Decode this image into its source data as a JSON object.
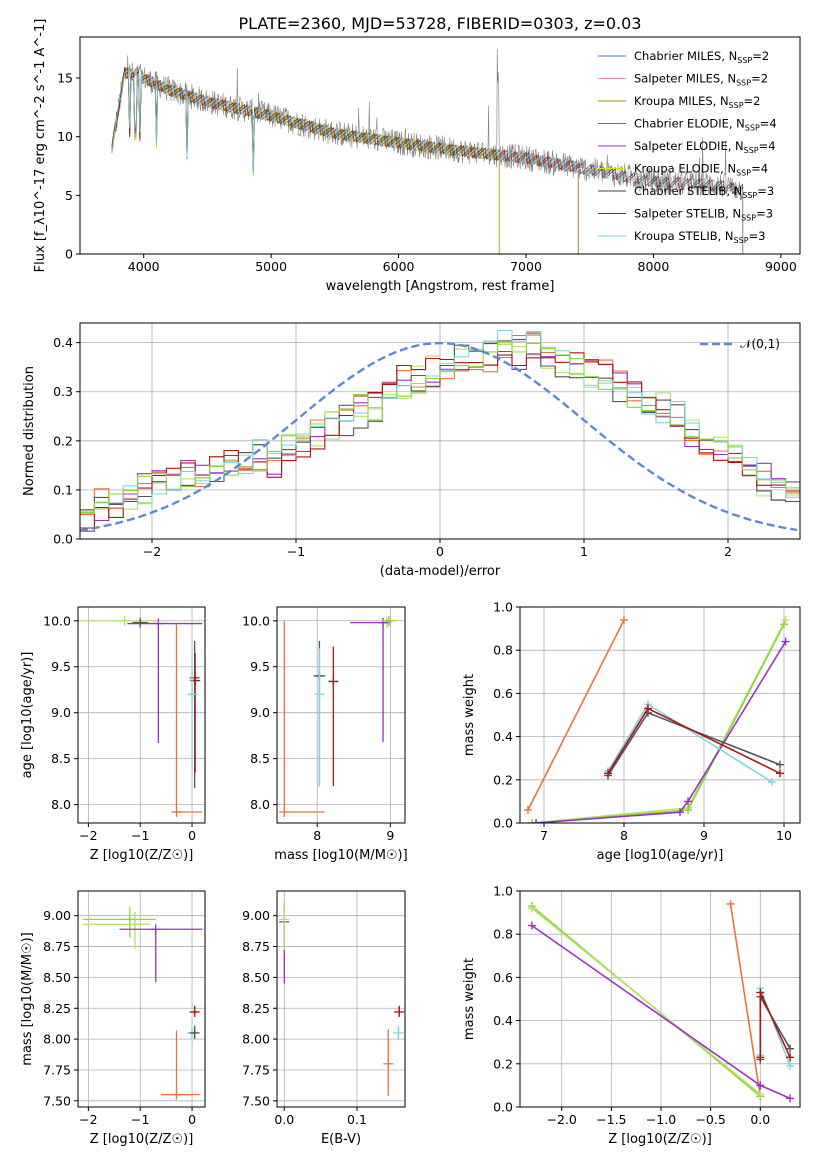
{
  "figure": {
    "title": "PLATE=2360, MJD=53728, FIBERID=0303, z=0.03"
  },
  "colors": {
    "chabrier_miles": "#4c72d0",
    "salpeter_miles": "#f08ca0",
    "kroupa_miles": "#b8860b",
    "chabrier_elodie": "#2ca02c",
    "salpeter_elodie": "#9b30c8",
    "kroupa_elodie": "#d4e800",
    "chabrier_stelib": "#404040",
    "salpeter_stelib": "#b01515",
    "kroupa_stelib": "#6fd6e0",
    "data": "#808080",
    "gaussian": "#5b8bd6",
    "orange": "#e8743b",
    "lightgreen": "#b5e36b",
    "purple": "#9b30c8",
    "gray": "#555555",
    "red": "#b01515",
    "cyan": "#7fd6e0",
    "green": "#8fd43b"
  },
  "chart_data": [
    {
      "id": "spectrum",
      "type": "line",
      "xlabel": "wavelength [Angstrom, rest frame]",
      "ylabel": "Flux [f_λ10^-17 erg cm^-2 s^-1 A^-1]",
      "xlim": [
        3500,
        9150
      ],
      "ylim": [
        0,
        18.5
      ],
      "xticks": [
        "4000",
        "5000",
        "6000",
        "7000",
        "8000",
        "9000"
      ],
      "yticks": [
        "0",
        "5",
        "10",
        "15"
      ],
      "grid": false,
      "legend_position": "top-right",
      "legend": [
        {
          "name": "Chabrier MILES, N",
          "sub": "SSP",
          "suffix": "=2"
        },
        {
          "name": "Salpeter MILES, N",
          "sub": "SSP",
          "suffix": "=2"
        },
        {
          "name": "Kroupa MILES, N",
          "sub": "SSP",
          "suffix": "=2"
        },
        {
          "name": "Chabrier ELODIE, N",
          "sub": "SSP",
          "suffix": "=4"
        },
        {
          "name": "Salpeter ELODIE, N",
          "sub": "SSP",
          "suffix": "=4"
        },
        {
          "name": "Kroupa ELODIE, N",
          "sub": "SSP",
          "suffix": "=4"
        },
        {
          "name": "Chabrier STELIB, N",
          "sub": "SSP",
          "suffix": "=3"
        },
        {
          "name": "Salpeter STELIB, N",
          "sub": "SSP",
          "suffix": "=3"
        },
        {
          "name": "Kroupa STELIB, N",
          "sub": "SSP",
          "suffix": "=3"
        }
      ],
      "continuum": {
        "x": [
          3750,
          3850,
          4000,
          4200,
          4500,
          5000,
          5500,
          6000,
          6500,
          7000,
          7500,
          8000,
          8500,
          8700
        ],
        "y": [
          9.0,
          15.5,
          15.0,
          14.0,
          13.0,
          11.8,
          10.3,
          9.5,
          8.8,
          8.2,
          7.2,
          6.2,
          5.9,
          5.5
        ]
      },
      "model_ranges": {
        "miles": [
          3750,
          7410
        ],
        "elodie": [
          3750,
          6790
        ],
        "stelib": [
          3750,
          8700
        ]
      }
    },
    {
      "id": "residuals",
      "type": "step",
      "xlabel": "(data-model)/error",
      "ylabel": "Normed distribution",
      "xlim": [
        -2.5,
        2.5
      ],
      "ylim": [
        0,
        0.44
      ],
      "xticks": [
        "−2",
        "−1",
        "0",
        "1",
        "2"
      ],
      "yticks": [
        "0.0",
        "0.1",
        "0.2",
        "0.3",
        "0.4"
      ],
      "grid": true,
      "legend_position": "top-right",
      "gaussian_label": "𝒩(0,1)",
      "bin_width": 0.1,
      "bin_start": -2.5,
      "base_hist": [
        0.05,
        0.07,
        0.06,
        0.08,
        0.1,
        0.12,
        0.11,
        0.14,
        0.13,
        0.15,
        0.16,
        0.15,
        0.17,
        0.16,
        0.18,
        0.19,
        0.21,
        0.23,
        0.24,
        0.26,
        0.27,
        0.3,
        0.32,
        0.33,
        0.34,
        0.35,
        0.36,
        0.38,
        0.37,
        0.39,
        0.38,
        0.39,
        0.37,
        0.36,
        0.35,
        0.34,
        0.33,
        0.31,
        0.3,
        0.28,
        0.27,
        0.25,
        0.22,
        0.2,
        0.19,
        0.16,
        0.14,
        0.12,
        0.1,
        0.09,
        0.08,
        0.07,
        0.06,
        0.06,
        0.05,
        0.04,
        0.04,
        0.03,
        0.03,
        0.02,
        0.03,
        0.02,
        0.03,
        0.03,
        0.03
      ]
    },
    {
      "id": "age-vs-Z",
      "type": "errorbar",
      "xlabel": "Z [log10(Z/Z☉)]",
      "ylabel": "age  [log10(age/yr)]",
      "xlim": [
        -2.2,
        0.25
      ],
      "ylim": [
        7.8,
        10.15
      ],
      "xticks": [
        "−2",
        "−1",
        "0"
      ],
      "yticks": [
        "8.0",
        "8.5",
        "9.0",
        "9.5",
        "10.0"
      ],
      "points": [
        {
          "x": -1.3,
          "y": 10.0,
          "xe": [
            0.9,
            0.6
          ],
          "ye": [
            0.02,
            0.02
          ],
          "c": "lightgreen"
        },
        {
          "x": -1.0,
          "y": 9.98,
          "xe": [
            0.15,
            0.15
          ],
          "ye": [
            0.03,
            0.03
          ],
          "c": "gray"
        },
        {
          "x": -0.65,
          "y": 9.97,
          "xe": [
            0.6,
            0.85
          ],
          "ye": [
            1.3,
            0.0
          ],
          "c": "purple"
        },
        {
          "x": -0.3,
          "y": 7.92,
          "xe": [
            0.05,
            0.5
          ],
          "ye": [
            0.0,
            2.05
          ],
          "c": "orange"
        },
        {
          "x": 0.05,
          "y": 9.38,
          "xe": [
            0.05,
            0.05
          ],
          "ye": [
            1.2,
            0.4
          ],
          "c": "gray"
        },
        {
          "x": 0.06,
          "y": 9.35,
          "xe": [
            0.05,
            0.05
          ],
          "ye": [
            1.0,
            0.3
          ],
          "c": "red"
        },
        {
          "x": 0.0,
          "y": 9.2,
          "xe": [
            0.05,
            0.05
          ],
          "ye": [
            0.8,
            0.4
          ],
          "c": "cyan"
        }
      ]
    },
    {
      "id": "age-vs-mass",
      "type": "errorbar",
      "xlabel": "mass [log10(M/M☉)]",
      "ylabel": "",
      "xlim": [
        7.45,
        9.2
      ],
      "ylim": [
        7.8,
        10.15
      ],
      "xticks": [
        "8",
        "9"
      ],
      "yticks": [
        "8.0",
        "8.5",
        "9.0",
        "9.5",
        "10.0"
      ],
      "points": [
        {
          "x": 7.55,
          "y": 7.92,
          "xe": [
            0.0,
            0.55
          ],
          "ye": [
            0.0,
            2.08
          ],
          "c": "orange"
        },
        {
          "x": 7.65,
          "y": 7.92,
          "xe": [
            0.0,
            0.0
          ],
          "ye": [
            0.0,
            2.05
          ],
          "c": "salpeter"
        },
        {
          "x": 8.03,
          "y": 9.4,
          "xe": [
            0.08,
            0.08
          ],
          "ye": [
            1.2,
            0.38
          ],
          "c": "gray"
        },
        {
          "x": 8.03,
          "y": 9.2,
          "xe": [
            0.05,
            0.05
          ],
          "ye": [
            1.0,
            0.5
          ],
          "c": "cyan"
        },
        {
          "x": 8.22,
          "y": 9.34,
          "xe": [
            0.06,
            0.06
          ],
          "ye": [
            1.14,
            0.38
          ],
          "c": "red"
        },
        {
          "x": 8.95,
          "y": 9.98,
          "xe": [
            0.05,
            0.05
          ],
          "ye": [
            0.05,
            0.05
          ],
          "c": "lightgreen"
        },
        {
          "x": 8.9,
          "y": 9.98,
          "xe": [
            0.45,
            0.1
          ],
          "ye": [
            1.3,
            0.0
          ],
          "c": "purple"
        },
        {
          "x": 8.98,
          "y": 10.0,
          "xe": [
            0.1,
            0.1
          ],
          "ye": [
            0.06,
            0.03
          ],
          "c": "green"
        }
      ]
    },
    {
      "id": "weight-vs-age",
      "type": "line",
      "xlabel": "age  [log10(age/yr)]",
      "ylabel": "mass weight",
      "xlim": [
        6.7,
        10.2
      ],
      "ylim": [
        0,
        1.0
      ],
      "xticks": [
        "7",
        "8",
        "9",
        "10"
      ],
      "yticks": [
        "0.0",
        "0.2",
        "0.4",
        "0.6",
        "0.8",
        "1.0"
      ],
      "grid": true,
      "series": [
        {
          "c": "orange",
          "x": [
            6.8,
            8.0
          ],
          "y": [
            0.06,
            0.94
          ]
        },
        {
          "c": "salpeter",
          "x": [
            6.8,
            7.99
          ],
          "y": [
            0.05,
            0.93
          ]
        },
        {
          "c": "lightgreen",
          "x": [
            6.85,
            8.8,
            10.02
          ],
          "y": [
            0.0,
            0.07,
            0.94
          ]
        },
        {
          "c": "green",
          "x": [
            6.85,
            8.8,
            10.0
          ],
          "y": [
            0.0,
            0.06,
            0.92
          ]
        },
        {
          "c": "purple",
          "x": [
            6.9,
            8.7,
            8.8,
            10.02
          ],
          "y": [
            0.0,
            0.05,
            0.1,
            0.84
          ]
        },
        {
          "c": "cyan",
          "x": [
            7.8,
            8.3,
            9.85
          ],
          "y": [
            0.24,
            0.55,
            0.19
          ]
        },
        {
          "c": "gray",
          "x": [
            7.8,
            8.3,
            9.95
          ],
          "y": [
            0.22,
            0.51,
            0.27
          ]
        },
        {
          "c": "red",
          "x": [
            7.8,
            8.3,
            9.95
          ],
          "y": [
            0.23,
            0.53,
            0.23
          ]
        }
      ]
    },
    {
      "id": "mass-vs-Z",
      "type": "errorbar",
      "xlabel": "Z [log10(Z/Z☉)]",
      "ylabel": "mass [log10(M/M☉)]",
      "xlim": [
        -2.2,
        0.25
      ],
      "ylim": [
        7.45,
        9.2
      ],
      "xticks": [
        "−2",
        "−1",
        "0"
      ],
      "yticks": [
        "7.50",
        "7.75",
        "8.00",
        "8.25",
        "8.50",
        "8.75",
        "9.00"
      ],
      "points": [
        {
          "x": -1.2,
          "y": 8.97,
          "xe": [
            0.9,
            0.5
          ],
          "ye": [
            0.15,
            0.1
          ],
          "c": "green"
        },
        {
          "x": -1.1,
          "y": 8.93,
          "xe": [
            1.0,
            0.3
          ],
          "ye": [
            0.2,
            0.1
          ],
          "c": "lightgreen"
        },
        {
          "x": -0.7,
          "y": 8.89,
          "xe": [
            0.7,
            0.9
          ],
          "ye": [
            0.43,
            0.0
          ],
          "c": "purple"
        },
        {
          "x": -0.3,
          "y": 7.55,
          "xe": [
            0.3,
            0.45
          ],
          "ye": [
            0.0,
            0.52
          ],
          "c": "orange"
        },
        {
          "x": -0.25,
          "y": 7.66,
          "xe": [
            0.2,
            0.0
          ],
          "ye": [
            0.0,
            0.0
          ],
          "c": "salpeter"
        },
        {
          "x": 0.0,
          "y": 8.05,
          "xe": [
            0.05,
            0.05
          ],
          "ye": [
            0.08,
            0.05
          ],
          "c": "cyan"
        },
        {
          "x": 0.05,
          "y": 8.05,
          "xe": [
            0.05,
            0.05
          ],
          "ye": [
            0.05,
            0.06
          ],
          "c": "gray"
        },
        {
          "x": 0.05,
          "y": 8.22,
          "xe": [
            0.05,
            0.05
          ],
          "ye": [
            0.03,
            0.05
          ],
          "c": "red"
        }
      ]
    },
    {
      "id": "mass-vs-EBV",
      "type": "errorbar",
      "xlabel": "E(B-V)",
      "ylabel": "",
      "xlim": [
        -0.01,
        0.166
      ],
      "ylim": [
        7.45,
        9.2
      ],
      "xticks": [
        "0.0",
        "0.1"
      ],
      "yticks": [
        "7.50",
        "7.75",
        "8.00",
        "8.25",
        "8.50",
        "8.75",
        "9.00"
      ],
      "points": [
        {
          "x": 0.0,
          "y": 8.95,
          "xe": [
            0.0,
            0.0
          ],
          "ye": [
            0.5,
            0.15
          ],
          "c": "purple"
        },
        {
          "x": 0.0,
          "y": 8.97,
          "xe": [
            0.0,
            0.0
          ],
          "ye": [
            0.25,
            0.15
          ],
          "c": "lightgreen"
        },
        {
          "x": 0.143,
          "y": 7.8,
          "xe": [
            0.0,
            0.0
          ],
          "ye": [
            0.26,
            0.28
          ],
          "c": "orange"
        },
        {
          "x": 0.157,
          "y": 8.05,
          "xe": [
            0.0,
            0.0
          ],
          "ye": [
            0.06,
            0.06
          ],
          "c": "cyan"
        },
        {
          "x": 0.158,
          "y": 8.22,
          "xe": [
            0.0,
            0.0
          ],
          "ye": [
            0.04,
            0.05
          ],
          "c": "red"
        }
      ]
    },
    {
      "id": "weight-vs-Z",
      "type": "line",
      "xlabel": "Z [log10(Z/Z☉)]",
      "ylabel": "mass weight",
      "xlim": [
        -2.42,
        0.4
      ],
      "ylim": [
        0,
        1.0
      ],
      "xticks": [
        "−2.0",
        "−1.5",
        "−1.0",
        "−0.5",
        "0.0"
      ],
      "yticks": [
        "0.0",
        "0.2",
        "0.4",
        "0.6",
        "0.8",
        "1.0"
      ],
      "grid": true,
      "series": [
        {
          "c": "orange",
          "x": [
            -0.3,
            0.0
          ],
          "y": [
            0.94,
            0.05
          ]
        },
        {
          "c": "green",
          "x": [
            -2.3,
            0.0
          ],
          "y": [
            0.93,
            0.05
          ]
        },
        {
          "c": "lightgreen",
          "x": [
            -2.3,
            0.0
          ],
          "y": [
            0.92,
            0.06
          ]
        },
        {
          "c": "purple",
          "x": [
            -2.3,
            0.0,
            0.3
          ],
          "y": [
            0.84,
            0.1,
            0.04
          ]
        },
        {
          "c": "cyan",
          "x": [
            0.0,
            0.0,
            0.3
          ],
          "y": [
            0.24,
            0.55,
            0.19
          ]
        },
        {
          "c": "gray",
          "x": [
            0.0,
            0.0,
            0.3
          ],
          "y": [
            0.22,
            0.51,
            0.27
          ]
        },
        {
          "c": "red",
          "x": [
            0.0,
            0.0,
            0.3
          ],
          "y": [
            0.23,
            0.53,
            0.23
          ]
        }
      ]
    }
  ]
}
